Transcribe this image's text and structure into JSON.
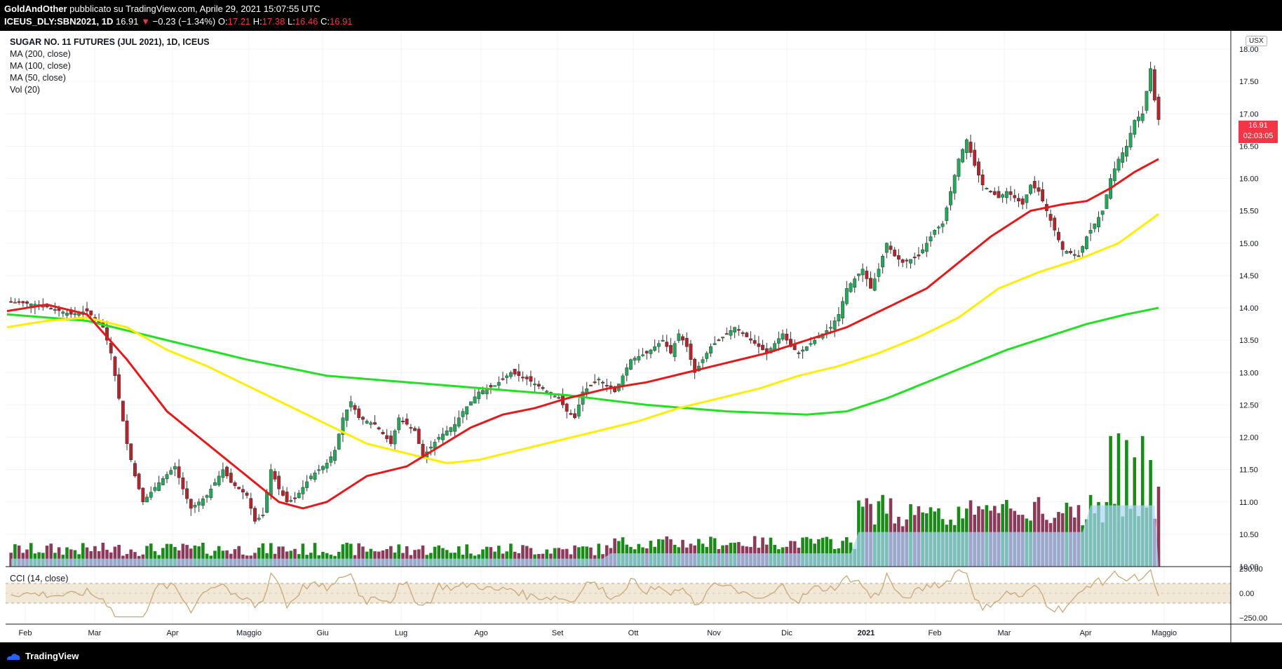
{
  "header": {
    "author": "GoldAndOther",
    "published": "pubblicato su TradingView.com, Aprile 29, 2021 15:07:55 UTC",
    "symbol": "ICEUS_DLY:SBN2021, 1D",
    "last": "16.91",
    "arrow": "▼",
    "change": "−0.23 (−1.34%)",
    "o_label": "O:",
    "o": "17.21",
    "h_label": "H:",
    "h": "17.38",
    "l_label": "L:",
    "l": "16.46",
    "c_label": "C:",
    "c": "16.91"
  },
  "legend": {
    "title": "SUGAR NO. 11 FUTURES (JUL 2021), 1D, ICEUS",
    "ma200": "MA (200, close)",
    "ma100": "MA (100, close)",
    "ma50": "MA (50, close)",
    "vol": "Vol (20)",
    "cci": "CCI (14, close)"
  },
  "currency_badge": "USX",
  "price_tag": {
    "price": "16.91",
    "countdown": "02:03:05"
  },
  "footer": {
    "brand": "TradingView"
  },
  "colors": {
    "up": "#26a65b",
    "down": "#b0262e",
    "vol_up": "#1b8a1b",
    "vol_down": "#8b3a5a",
    "ma50": "#e31a1c",
    "ma100": "#ffee00",
    "ma200": "#22e022",
    "cci": "#c8a878",
    "cci_band": "#f2e8d8"
  },
  "chart_data": {
    "type": "candlestick",
    "title": "SUGAR NO. 11 FUTURES (JUL 2021), 1D, ICEUS",
    "y_axis": {
      "min": 10.0,
      "max": 18.0,
      "ticks": [
        "10.00",
        "10.50",
        "11.00",
        "11.50",
        "12.00",
        "12.50",
        "13.00",
        "13.50",
        "14.00",
        "14.50",
        "15.00",
        "15.50",
        "16.00",
        "16.50",
        "17.00",
        "17.50",
        "18.00"
      ]
    },
    "x_axis": {
      "labels": [
        "Feb",
        "Mar",
        "Apr",
        "Maggio",
        "Giu",
        "Lug",
        "Ago",
        "Set",
        "Ott",
        "Nov",
        "Dic",
        "2021",
        "Feb",
        "Mar",
        "Apr",
        "Maggio"
      ]
    },
    "cci_axis": {
      "ticks": [
        "250.00",
        "0.00",
        "−250.00"
      ],
      "band": [
        -100,
        100
      ]
    },
    "close_path": [
      [
        0,
        14.1
      ],
      [
        8,
        14.05
      ],
      [
        16,
        13.9
      ],
      [
        20,
        13.95
      ],
      [
        24,
        13.7
      ],
      [
        26,
        13.3
      ],
      [
        28,
        12.6
      ],
      [
        30,
        11.9
      ],
      [
        32,
        11.4
      ],
      [
        34,
        11.0
      ],
      [
        38,
        11.3
      ],
      [
        42,
        11.55
      ],
      [
        44,
        11.2
      ],
      [
        46,
        10.9
      ],
      [
        50,
        11.1
      ],
      [
        54,
        11.5
      ],
      [
        56,
        11.3
      ],
      [
        60,
        11.1
      ],
      [
        62,
        10.7
      ],
      [
        64,
        10.8
      ],
      [
        66,
        11.5
      ],
      [
        68,
        11.2
      ],
      [
        70,
        11.0
      ],
      [
        72,
        11.05
      ],
      [
        76,
        11.4
      ],
      [
        80,
        11.6
      ],
      [
        82,
        11.8
      ],
      [
        84,
        12.3
      ],
      [
        86,
        12.55
      ],
      [
        88,
        12.3
      ],
      [
        92,
        12.2
      ],
      [
        96,
        11.9
      ],
      [
        98,
        12.3
      ],
      [
        102,
        12.1
      ],
      [
        104,
        11.7
      ],
      [
        108,
        12.0
      ],
      [
        112,
        12.2
      ],
      [
        114,
        12.4
      ],
      [
        118,
        12.7
      ],
      [
        122,
        12.8
      ],
      [
        126,
        13.0
      ],
      [
        130,
        12.9
      ],
      [
        134,
        12.75
      ],
      [
        138,
        12.6
      ],
      [
        140,
        12.4
      ],
      [
        142,
        12.3
      ],
      [
        144,
        12.7
      ],
      [
        148,
        12.9
      ],
      [
        152,
        12.7
      ],
      [
        156,
        13.2
      ],
      [
        160,
        13.3
      ],
      [
        164,
        13.5
      ],
      [
        166,
        13.3
      ],
      [
        168,
        13.6
      ],
      [
        170,
        13.4
      ],
      [
        172,
        13.0
      ],
      [
        174,
        13.2
      ],
      [
        176,
        13.4
      ],
      [
        178,
        13.5
      ],
      [
        182,
        13.7
      ],
      [
        186,
        13.5
      ],
      [
        190,
        13.3
      ],
      [
        194,
        13.6
      ],
      [
        196,
        13.4
      ],
      [
        198,
        13.3
      ],
      [
        202,
        13.5
      ],
      [
        206,
        13.7
      ],
      [
        208,
        13.9
      ],
      [
        210,
        14.3
      ],
      [
        214,
        14.6
      ],
      [
        216,
        14.3
      ],
      [
        218,
        14.6
      ],
      [
        220,
        15.0
      ],
      [
        222,
        14.8
      ],
      [
        224,
        14.7
      ],
      [
        228,
        14.8
      ],
      [
        232,
        15.2
      ],
      [
        234,
        15.3
      ],
      [
        236,
        15.8
      ],
      [
        238,
        16.3
      ],
      [
        240,
        16.6
      ],
      [
        242,
        16.2
      ],
      [
        244,
        15.9
      ],
      [
        248,
        15.7
      ],
      [
        250,
        15.8
      ],
      [
        254,
        15.6
      ],
      [
        256,
        15.9
      ],
      [
        258,
        15.8
      ],
      [
        260,
        15.5
      ],
      [
        262,
        15.2
      ],
      [
        264,
        14.9
      ],
      [
        268,
        14.8
      ],
      [
        270,
        15.1
      ],
      [
        272,
        15.3
      ],
      [
        274,
        15.5
      ],
      [
        276,
        16.0
      ],
      [
        278,
        16.3
      ],
      [
        280,
        16.5
      ],
      [
        282,
        16.9
      ],
      [
        284,
        17.0
      ],
      [
        286,
        17.7
      ],
      [
        287,
        17.21
      ],
      [
        288,
        16.91
      ]
    ],
    "ma50": [
      [
        0,
        13.95
      ],
      [
        10,
        14.05
      ],
      [
        20,
        13.9
      ],
      [
        30,
        13.2
      ],
      [
        40,
        12.4
      ],
      [
        50,
        11.9
      ],
      [
        60,
        11.4
      ],
      [
        68,
        11.0
      ],
      [
        74,
        10.9
      ],
      [
        80,
        11.0
      ],
      [
        90,
        11.4
      ],
      [
        100,
        11.55
      ],
      [
        108,
        11.85
      ],
      [
        116,
        12.15
      ],
      [
        124,
        12.35
      ],
      [
        132,
        12.45
      ],
      [
        140,
        12.6
      ],
      [
        150,
        12.75
      ],
      [
        160,
        12.85
      ],
      [
        170,
        13.0
      ],
      [
        180,
        13.15
      ],
      [
        190,
        13.3
      ],
      [
        200,
        13.5
      ],
      [
        210,
        13.7
      ],
      [
        220,
        14.0
      ],
      [
        230,
        14.3
      ],
      [
        236,
        14.6
      ],
      [
        246,
        15.1
      ],
      [
        256,
        15.5
      ],
      [
        264,
        15.6
      ],
      [
        270,
        15.65
      ],
      [
        276,
        15.85
      ],
      [
        282,
        16.1
      ],
      [
        288,
        16.3
      ]
    ],
    "ma100": [
      [
        0,
        13.7
      ],
      [
        10,
        13.8
      ],
      [
        20,
        13.85
      ],
      [
        30,
        13.7
      ],
      [
        40,
        13.35
      ],
      [
        50,
        13.1
      ],
      [
        60,
        12.8
      ],
      [
        70,
        12.5
      ],
      [
        80,
        12.2
      ],
      [
        90,
        11.9
      ],
      [
        100,
        11.75
      ],
      [
        110,
        11.6
      ],
      [
        118,
        11.65
      ],
      [
        128,
        11.8
      ],
      [
        138,
        11.95
      ],
      [
        148,
        12.1
      ],
      [
        158,
        12.25
      ],
      [
        168,
        12.45
      ],
      [
        178,
        12.6
      ],
      [
        188,
        12.75
      ],
      [
        198,
        12.95
      ],
      [
        208,
        13.1
      ],
      [
        218,
        13.3
      ],
      [
        228,
        13.55
      ],
      [
        238,
        13.85
      ],
      [
        248,
        14.3
      ],
      [
        258,
        14.55
      ],
      [
        268,
        14.75
      ],
      [
        278,
        15.0
      ],
      [
        288,
        15.45
      ]
    ],
    "ma200": [
      [
        0,
        13.9
      ],
      [
        20,
        13.8
      ],
      [
        40,
        13.5
      ],
      [
        60,
        13.2
      ],
      [
        80,
        12.95
      ],
      [
        100,
        12.85
      ],
      [
        120,
        12.75
      ],
      [
        140,
        12.65
      ],
      [
        160,
        12.5
      ],
      [
        180,
        12.4
      ],
      [
        200,
        12.35
      ],
      [
        210,
        12.4
      ],
      [
        220,
        12.6
      ],
      [
        230,
        12.85
      ],
      [
        240,
        13.1
      ],
      [
        250,
        13.35
      ],
      [
        260,
        13.55
      ],
      [
        270,
        13.75
      ],
      [
        280,
        13.9
      ],
      [
        288,
        14.0
      ]
    ],
    "volume_spikes": [
      [
        214,
        0.45
      ],
      [
        230,
        0.4
      ],
      [
        238,
        0.45
      ],
      [
        246,
        0.42
      ],
      [
        266,
        0.45
      ],
      [
        272,
        0.4
      ],
      [
        276,
        0.98
      ],
      [
        278,
        1.0
      ],
      [
        280,
        0.95
      ],
      [
        282,
        0.82
      ],
      [
        284,
        0.98
      ],
      [
        286,
        0.8
      ],
      [
        288,
        0.6
      ]
    ]
  }
}
